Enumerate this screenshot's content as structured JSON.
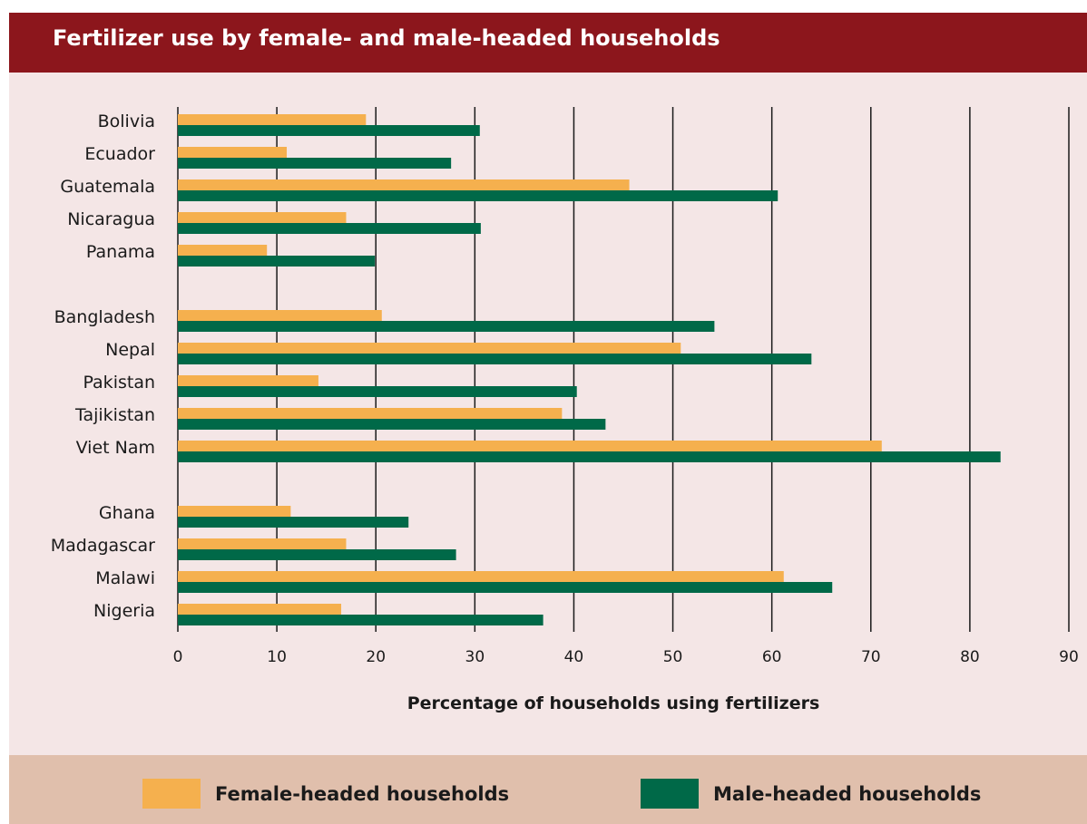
{
  "chart_data": {
    "type": "bar",
    "orientation": "horizontal",
    "title": "Fertilizer use by female- and male-headed households",
    "xlabel": "Percentage of households using fertilizers",
    "ylabel": "",
    "xlim": [
      0,
      90
    ],
    "xticks": [
      0,
      10,
      20,
      30,
      40,
      50,
      60,
      70,
      80,
      90
    ],
    "grid": true,
    "legend_position": "bottom",
    "categories": [
      "Bolivia",
      "Ecuador",
      "Guatemala",
      "Nicaragua",
      "Panama",
      "Bangladesh",
      "Nepal",
      "Pakistan",
      "Tajikistan",
      "Viet Nam",
      "Ghana",
      "Madagascar",
      "Malawi",
      "Nigeria"
    ],
    "groups": [
      [
        "Bolivia",
        "Ecuador",
        "Guatemala",
        "Nicaragua",
        "Panama"
      ],
      [
        "Bangladesh",
        "Nepal",
        "Pakistan",
        "Tajikistan",
        "Viet Nam"
      ],
      [
        "Ghana",
        "Madagascar",
        "Malawi",
        "Nigeria"
      ]
    ],
    "series": [
      {
        "name": "Female-headed households",
        "color": "#f5b04e",
        "values": [
          19,
          11,
          45.6,
          17,
          9,
          20.6,
          50.8,
          14.2,
          38.8,
          71.1,
          11.4,
          17,
          61.2,
          16.5
        ]
      },
      {
        "name": "Male-headed households",
        "color": "#006948",
        "values": [
          30.5,
          27.6,
          60.6,
          30.6,
          19.9,
          54.2,
          64,
          40.3,
          43.2,
          83.1,
          23.3,
          28.1,
          66.1,
          36.9
        ]
      }
    ]
  }
}
